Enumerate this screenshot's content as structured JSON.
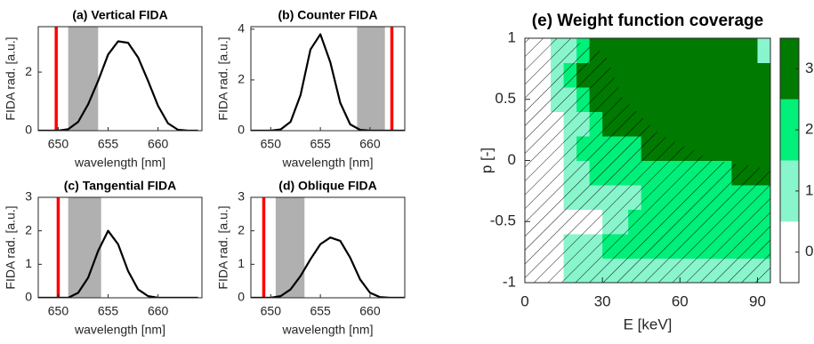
{
  "chart_data": [
    {
      "type": "line",
      "title": "(a) Vertical FIDA",
      "xlabel": "wavelength [nm]",
      "ylabel": "FIDA rad. [a.u.]",
      "x": [
        648,
        649,
        650,
        651,
        652,
        653,
        654,
        655,
        656,
        657,
        658,
        659,
        660,
        661,
        662,
        663,
        664
      ],
      "values": [
        0,
        0,
        0,
        0.05,
        0.3,
        0.9,
        1.7,
        2.6,
        3.05,
        3.0,
        2.5,
        1.7,
        0.85,
        0.25,
        0.03,
        0,
        0
      ],
      "color": "#000000",
      "marker_line": 649.8,
      "marker_color": "#ff0000",
      "band": [
        651,
        654
      ],
      "band_color": "#b0b0b0",
      "xlim": [
        648,
        664.4
      ],
      "xticks": [
        650,
        655,
        660
      ],
      "ylim": [
        0,
        3.55
      ],
      "yticks": [
        0,
        2
      ]
    },
    {
      "type": "line",
      "title": "(b) Counter FIDA",
      "xlabel": "wavelength [nm]",
      "ylabel": "FIDA rad. [a.u.]",
      "x": [
        648,
        649,
        650,
        651,
        652,
        653,
        654,
        655,
        656,
        657,
        658,
        659,
        660,
        661,
        662,
        663,
        664
      ],
      "values": [
        0,
        0,
        0,
        0.05,
        0.35,
        1.4,
        3.2,
        3.8,
        2.7,
        1.1,
        0.25,
        0.03,
        0,
        0,
        0,
        0,
        0
      ],
      "color": "#000000",
      "marker_line": 662.2,
      "marker_color": "#ff0000",
      "band": [
        658.7,
        661.5
      ],
      "band_color": "#b0b0b0",
      "xlim": [
        648,
        663.5
      ],
      "xticks": [
        650,
        655,
        660
      ],
      "ylim": [
        0,
        4.1
      ],
      "yticks": [
        0,
        2,
        4
      ]
    },
    {
      "type": "line",
      "title": "(c) Tangential FIDA",
      "xlabel": "wavelength [nm]",
      "ylabel": "FIDA rad. [a.u.]",
      "x": [
        648,
        649,
        650,
        651,
        652,
        653,
        654,
        655,
        656,
        657,
        658,
        659,
        660,
        661,
        662,
        663,
        664
      ],
      "values": [
        0,
        0,
        0,
        0,
        0.15,
        0.6,
        1.4,
        2.0,
        1.6,
        0.8,
        0.25,
        0.05,
        0,
        0,
        0,
        0,
        0
      ],
      "color": "#000000",
      "marker_line": 650,
      "marker_color": "#ff0000",
      "band": [
        651,
        654.3
      ],
      "band_color": "#b0b0b0",
      "xlim": [
        648,
        664.4
      ],
      "xticks": [
        650,
        655,
        660
      ],
      "ylim": [
        0,
        3
      ],
      "yticks": [
        0,
        1,
        2,
        3
      ]
    },
    {
      "type": "line",
      "title": "(d) Oblique FIDA",
      "xlabel": "wavelength [nm]",
      "ylabel": "FIDA rad. [a.u.]",
      "x": [
        648,
        649,
        650,
        651,
        652,
        653,
        654,
        655,
        656,
        657,
        658,
        659,
        660,
        661,
        662,
        663,
        664
      ],
      "values": [
        0,
        0,
        0,
        0.05,
        0.25,
        0.65,
        1.15,
        1.6,
        1.8,
        1.7,
        1.2,
        0.55,
        0.15,
        0.02,
        0,
        0,
        0
      ],
      "color": "#000000",
      "marker_line": 649.3,
      "marker_color": "#ff0000",
      "band": [
        650.5,
        653.4
      ],
      "band_color": "#b0b0b0",
      "xlim": [
        648,
        663.5
      ],
      "xticks": [
        650,
        655,
        660
      ],
      "ylim": [
        0,
        3
      ],
      "yticks": [
        0,
        1,
        2,
        3
      ]
    },
    {
      "type": "heatmap",
      "title": "(e) Weight function coverage",
      "xlabel": "E [keV]",
      "ylabel": "p [-]",
      "xbins": [
        0,
        5,
        10,
        15,
        20,
        25,
        30,
        35,
        40,
        45,
        50,
        55,
        60,
        65,
        70,
        75,
        80,
        85,
        90,
        95
      ],
      "ybins": [
        -1,
        -0.8,
        -0.6,
        -0.4,
        -0.2,
        0,
        0.2,
        0.4,
        0.6,
        0.8,
        1
      ],
      "z": [
        [
          0,
          0,
          0,
          1,
          1,
          1,
          1,
          1,
          1,
          1,
          1,
          1,
          1,
          1,
          1,
          1,
          1,
          1,
          1
        ],
        [
          0,
          0,
          0,
          1,
          1,
          1,
          2,
          2,
          2,
          2,
          2,
          2,
          2,
          2,
          2,
          2,
          2,
          2,
          2
        ],
        [
          0,
          0,
          0,
          0,
          0,
          0,
          1,
          1,
          2,
          2,
          2,
          2,
          2,
          2,
          2,
          2,
          2,
          2,
          2
        ],
        [
          0,
          0,
          0,
          1,
          1,
          1,
          1,
          1,
          1,
          2,
          2,
          2,
          2,
          2,
          2,
          2,
          2,
          2,
          2
        ],
        [
          0,
          0,
          0,
          1,
          1,
          2,
          2,
          2,
          2,
          2,
          2,
          2,
          2,
          2,
          2,
          2,
          3,
          3,
          3
        ],
        [
          0,
          0,
          0,
          1,
          2,
          2,
          2,
          2,
          2,
          3,
          3,
          3,
          3,
          3,
          3,
          3,
          3,
          3,
          3
        ],
        [
          0,
          0,
          0,
          1,
          1,
          2,
          3,
          3,
          3,
          3,
          3,
          3,
          3,
          3,
          3,
          3,
          3,
          3,
          3
        ],
        [
          0,
          0,
          1,
          1,
          2,
          3,
          3,
          3,
          3,
          3,
          3,
          3,
          3,
          3,
          3,
          3,
          3,
          3,
          3
        ],
        [
          0,
          0,
          1,
          2,
          3,
          3,
          3,
          3,
          3,
          3,
          3,
          3,
          3,
          3,
          3,
          3,
          3,
          3,
          3
        ],
        [
          0,
          0,
          1,
          1,
          2,
          3,
          3,
          3,
          3,
          3,
          3,
          3,
          3,
          3,
          3,
          3,
          3,
          3,
          1
        ]
      ],
      "colors": [
        "#ffffff",
        "#88f5cc",
        "#00f07a",
        "#007a00"
      ],
      "clim": [
        -0.5,
        3.5
      ],
      "cticks": [
        0,
        1,
        2,
        3
      ],
      "xlim": [
        0,
        95
      ],
      "xticks": [
        0,
        30,
        60,
        90
      ],
      "ylim": [
        -1,
        1
      ],
      "yticks": [
        -1,
        -0.5,
        0,
        0.5,
        1
      ]
    }
  ]
}
